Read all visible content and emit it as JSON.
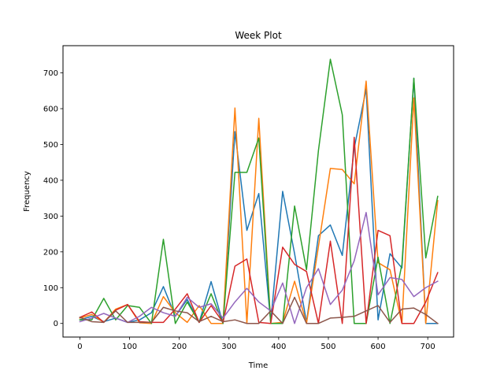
{
  "chart_data": {
    "type": "line",
    "title": "Week Plot",
    "xlabel": "Time",
    "ylabel": "Frequency",
    "xlim": [
      -34,
      752
    ],
    "ylim": [
      -38,
      776
    ],
    "xticks": [
      0,
      100,
      200,
      300,
      400,
      500,
      600,
      700
    ],
    "yticks": [
      0,
      100,
      200,
      300,
      400,
      500,
      600,
      700
    ],
    "grid": false,
    "legend": "none",
    "x": [
      0,
      24,
      48,
      72,
      96,
      120,
      144,
      168,
      192,
      216,
      240,
      264,
      288,
      312,
      336,
      360,
      384,
      408,
      432,
      456,
      480,
      504,
      528,
      552,
      576,
      600,
      624,
      648,
      672,
      696,
      720
    ],
    "series": [
      {
        "color": "#1f77b4",
        "values": [
          10,
          20,
          5,
          15,
          3,
          10,
          30,
          103,
          20,
          67,
          3,
          117,
          0,
          536,
          260,
          363,
          3,
          369,
          195,
          3,
          245,
          275,
          190,
          490,
          655,
          10,
          195,
          155,
          685,
          0,
          0
        ]
      },
      {
        "color": "#ff7f0e",
        "values": [
          15,
          25,
          3,
          40,
          53,
          2,
          0,
          75,
          30,
          3,
          50,
          0,
          0,
          602,
          0,
          573,
          0,
          3,
          118,
          0,
          215,
          433,
          430,
          390,
          677,
          170,
          150,
          0,
          630,
          0,
          343
        ]
      },
      {
        "color": "#2ca02c",
        "values": [
          10,
          10,
          70,
          10,
          50,
          45,
          0,
          235,
          0,
          60,
          3,
          83,
          0,
          422,
          422,
          518,
          0,
          0,
          328,
          150,
          483,
          738,
          583,
          0,
          0,
          185,
          0,
          165,
          685,
          183,
          355
        ]
      },
      {
        "color": "#d62728",
        "values": [
          17,
          32,
          3,
          37,
          53,
          5,
          3,
          3,
          40,
          83,
          3,
          50,
          3,
          160,
          180,
          3,
          0,
          213,
          165,
          145,
          0,
          230,
          0,
          520,
          0,
          260,
          245,
          0,
          0,
          60,
          142
        ]
      },
      {
        "color": "#9467bd",
        "values": [
          5,
          15,
          28,
          15,
          3,
          20,
          45,
          30,
          20,
          73,
          45,
          55,
          15,
          60,
          98,
          60,
          35,
          113,
          0,
          100,
          153,
          53,
          93,
          175,
          310,
          80,
          128,
          123,
          75,
          100,
          118
        ]
      },
      {
        "color": "#8c564b",
        "values": [
          17,
          5,
          3,
          35,
          3,
          3,
          3,
          45,
          35,
          30,
          5,
          20,
          5,
          10,
          0,
          0,
          35,
          0,
          73,
          0,
          0,
          15,
          17,
          20,
          35,
          50,
          3,
          40,
          43,
          25,
          0
        ]
      }
    ]
  }
}
